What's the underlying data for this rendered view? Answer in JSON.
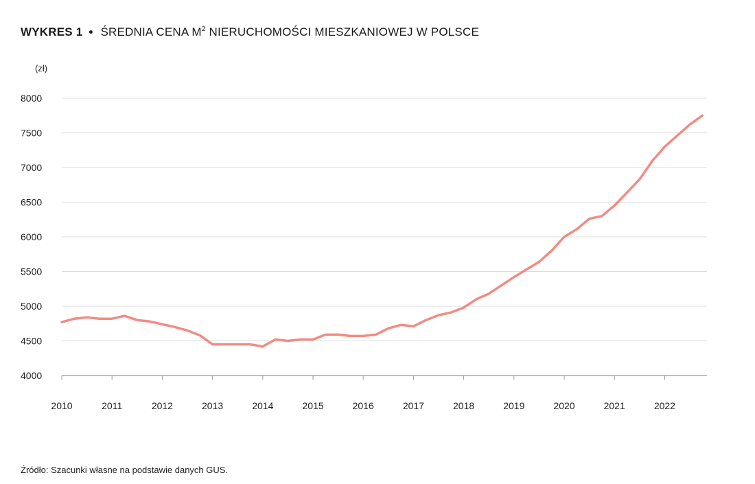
{
  "title": {
    "label": "WYKRES 1",
    "bullet": "•",
    "text_before_sup": "ŚREDNIA CENA M",
    "sup": "2",
    "text_after_sup": " NIERUCHOMOŚCI MIESZKANIOWEJ W POLSCE"
  },
  "source": "Źródło: Szacunki własne na podstawie danych GUS.",
  "colors": {
    "line": "#f28b82",
    "grid": "#dcdcdc",
    "axis": "#9a9a9a"
  },
  "chart_data": {
    "type": "line",
    "title": "WYKRES 1 • ŚREDNIA CENA M2 NIERUCHOMOŚCI MIESZKANIOWEJ W POLSCE",
    "ylabel": "(zł)",
    "xlabel": "",
    "ylim": [
      4000,
      8000
    ],
    "yticks": [
      4000,
      4500,
      5000,
      5500,
      6000,
      6500,
      7000,
      7500,
      8000
    ],
    "xlim": [
      2010,
      2022.75
    ],
    "xticks": [
      2010,
      2011,
      2012,
      2013,
      2014,
      2015,
      2016,
      2017,
      2018,
      2019,
      2020,
      2021,
      2022
    ],
    "grid": true,
    "legend": "none",
    "series": [
      {
        "x": [
          2010,
          2010.25,
          2010.5,
          2010.75,
          2011,
          2011.25,
          2011.5,
          2011.75,
          2012,
          2012.25,
          2012.5,
          2012.75,
          2013,
          2013.25,
          2013.5,
          2013.75,
          2014,
          2014.25,
          2014.5,
          2014.75,
          2015,
          2015.25,
          2015.5,
          2015.75,
          2016,
          2016.25,
          2016.5,
          2016.75,
          2017,
          2017.25,
          2017.5,
          2017.75,
          2018,
          2018.25,
          2018.5,
          2018.75,
          2019,
          2019.25,
          2019.5,
          2019.75,
          2020,
          2020.25,
          2020.5,
          2020.75,
          2021,
          2021.25,
          2021.5,
          2021.75,
          2022,
          2022.25,
          2022.5,
          2022.75
        ],
        "values": [
          4770,
          4820,
          4840,
          4820,
          4820,
          4860,
          4800,
          4780,
          4740,
          4700,
          4650,
          4580,
          4450,
          4450,
          4450,
          4450,
          4420,
          4520,
          4500,
          4520,
          4520,
          4590,
          4590,
          4570,
          4570,
          4590,
          4680,
          4730,
          4710,
          4800,
          4870,
          4910,
          4980,
          5100,
          5180,
          5300,
          5420,
          5530,
          5640,
          5800,
          6000,
          6110,
          6260,
          6300,
          6450,
          6640,
          6830,
          7090,
          7300,
          7460,
          7620,
          7750
        ]
      }
    ]
  }
}
